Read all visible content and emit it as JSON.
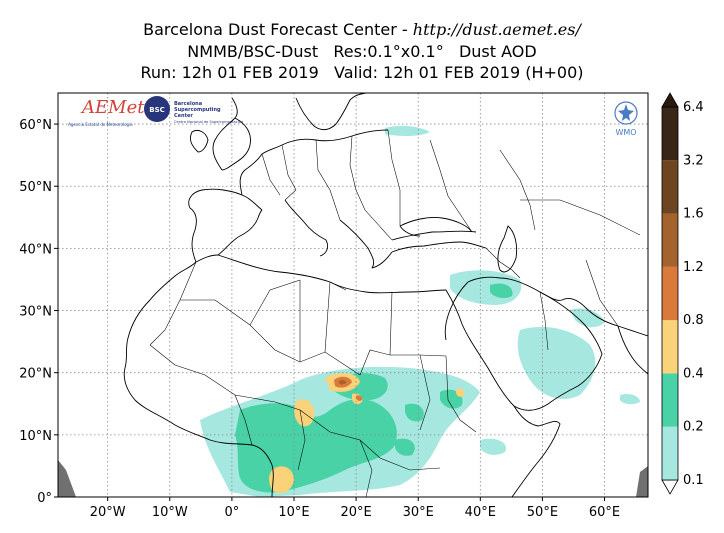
{
  "header": {
    "line1_prefix": "Barcelona Dust Forecast Center - ",
    "line1_url": "http://dust.aemet.es/",
    "line2": "NMMB/BSC-Dust   Res:0.1°x0.1°   Dust AOD",
    "line3": "Run: 12h 01 FEB 2019   Valid: 12h 01 FEB 2019 (H+00)"
  },
  "logos": {
    "aemet_text": "AEMet",
    "aemet_sub": "Agencia Estatal de Meteorología",
    "bsc_text": "BSC",
    "bsc_name1": "Barcelona",
    "bsc_name2": "Supercomputing",
    "bsc_name3": "Center",
    "bsc_sub": "Centro Nacional de Supercomputación",
    "wmo_text": "WMO"
  },
  "map": {
    "lon_range": [
      -28,
      67
    ],
    "lat_range": [
      0,
      65
    ],
    "lat_ticks": [
      {
        "value": 0,
        "label": "0°"
      },
      {
        "value": 10,
        "label": "10°N"
      },
      {
        "value": 20,
        "label": "20°N"
      },
      {
        "value": 30,
        "label": "30°N"
      },
      {
        "value": 40,
        "label": "40°N"
      },
      {
        "value": 50,
        "label": "50°N"
      },
      {
        "value": 60,
        "label": "60°N"
      }
    ],
    "lon_ticks": [
      {
        "value": -20,
        "label": "20°W"
      },
      {
        "value": -10,
        "label": "10°W"
      },
      {
        "value": 0,
        "label": "0°"
      },
      {
        "value": 10,
        "label": "10°E"
      },
      {
        "value": 20,
        "label": "20°E"
      },
      {
        "value": 30,
        "label": "30°E"
      },
      {
        "value": 40,
        "label": "40°E"
      },
      {
        "value": 50,
        "label": "50°E"
      },
      {
        "value": 60,
        "label": "60°E"
      }
    ],
    "grid": true,
    "grid_style": "dotted",
    "border_color": "#000000",
    "no_data_color": "#707070"
  },
  "colorbar": {
    "placement": "right",
    "levels": [
      "0.1",
      "0.2",
      "0.4",
      "0.8",
      "1.2",
      "1.6",
      "3.2",
      "6.4"
    ],
    "colors": [
      "#a6e8e0",
      "#49d2a6",
      "#fad27a",
      "#d9793a",
      "#a4622c",
      "#6e4521",
      "#3a2614"
    ],
    "under_color": "#ffffff",
    "over_color": "#2b1a0e"
  },
  "dust_levels": [
    {
      "level": "0.1-0.2",
      "color": "#a6e8e0"
    },
    {
      "level": "0.2-0.4",
      "color": "#49d2a6"
    },
    {
      "level": "0.4-0.8",
      "color": "#fad27a"
    },
    {
      "level": "0.8-1.2",
      "color": "#d9793a"
    },
    {
      "level": "1.2-1.6",
      "color": "#a4622c"
    }
  ]
}
